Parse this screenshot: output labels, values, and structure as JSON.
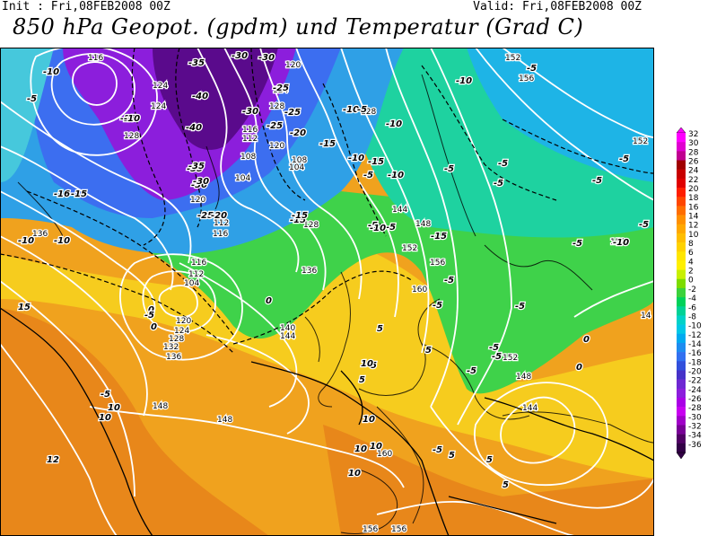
{
  "header": {
    "init": "Init : Fri,08FEB2008 00Z",
    "valid": "Valid: Fri,08FEB2008 00Z",
    "title": "850 hPa Geopot. (gpdm) und Temperatur (Grad C)"
  },
  "legend": {
    "values": [
      32,
      30,
      28,
      26,
      24,
      22,
      20,
      18,
      16,
      14,
      12,
      10,
      8,
      6,
      4,
      2,
      0,
      -2,
      -4,
      -6,
      -8,
      -10,
      -12,
      -14,
      -16,
      -18,
      -20,
      -22,
      -24,
      -26,
      -28,
      -30,
      -32,
      -34,
      -36
    ],
    "colors": [
      "#ff00ff",
      "#e000d0",
      "#c00090",
      "#a00000",
      "#c80000",
      "#e00000",
      "#ff1e00",
      "#ff4600",
      "#ff6e00",
      "#ff9000",
      "#ffa800",
      "#ffbe00",
      "#ffd200",
      "#ffe600",
      "#fff000",
      "#c8f000",
      "#7ddc00",
      "#3cd23c",
      "#00d25a",
      "#00d296",
      "#00d2c8",
      "#00c8e6",
      "#00aaf0",
      "#1e8cf0",
      "#3270f0",
      "#3250dc",
      "#4632c8",
      "#6e28d2",
      "#8c1edc",
      "#aa00e6",
      "#c800f0",
      "#a000c8",
      "#780096",
      "#500064",
      "#320046"
    ]
  },
  "map": {
    "geopotential_labels": [
      {
        "text": "116",
        "kind": "geo"
      },
      {
        "text": "124",
        "kind": "geo"
      },
      {
        "text": "124",
        "kind": "geo"
      },
      {
        "text": "128",
        "kind": "geo"
      },
      {
        "text": "120",
        "kind": "geo"
      },
      {
        "text": "124",
        "kind": "geo"
      },
      {
        "text": "128",
        "kind": "geo"
      },
      {
        "text": "116",
        "kind": "geo"
      },
      {
        "text": "112",
        "kind": "geo"
      },
      {
        "text": "120",
        "kind": "geo"
      },
      {
        "text": "108",
        "kind": "geo"
      },
      {
        "text": "104",
        "kind": "geo"
      },
      {
        "text": "108",
        "kind": "geo"
      },
      {
        "text": "104",
        "kind": "geo"
      },
      {
        "text": "120",
        "kind": "geo"
      },
      {
        "text": "112",
        "kind": "geo"
      },
      {
        "text": "116",
        "kind": "geo"
      },
      {
        "text": "128",
        "kind": "geo"
      },
      {
        "text": "128",
        "kind": "geo"
      },
      {
        "text": "152",
        "kind": "geo"
      },
      {
        "text": "156",
        "kind": "geo"
      },
      {
        "text": "152",
        "kind": "geo"
      },
      {
        "text": "144",
        "kind": "geo"
      },
      {
        "text": "148",
        "kind": "geo"
      },
      {
        "text": "152",
        "kind": "geo"
      },
      {
        "text": "156",
        "kind": "geo"
      },
      {
        "text": "160",
        "kind": "geo"
      },
      {
        "text": "136",
        "kind": "geo"
      },
      {
        "text": "136",
        "kind": "geo"
      },
      {
        "text": "140",
        "kind": "geo"
      },
      {
        "text": "144",
        "kind": "geo"
      },
      {
        "text": "116",
        "kind": "geo"
      },
      {
        "text": "112",
        "kind": "geo"
      },
      {
        "text": "104",
        "kind": "geo"
      },
      {
        "text": "120",
        "kind": "geo"
      },
      {
        "text": "124",
        "kind": "geo"
      },
      {
        "text": "128",
        "kind": "geo"
      },
      {
        "text": "132",
        "kind": "geo"
      },
      {
        "text": "136",
        "kind": "geo"
      },
      {
        "text": "148",
        "kind": "geo"
      },
      {
        "text": "148",
        "kind": "geo"
      },
      {
        "text": "152",
        "kind": "geo"
      },
      {
        "text": "148",
        "kind": "geo"
      },
      {
        "text": "144",
        "kind": "geo"
      },
      {
        "text": "160",
        "kind": "geo"
      },
      {
        "text": "152",
        "kind": "geo"
      },
      {
        "text": "156",
        "kind": "geo"
      },
      {
        "text": "156",
        "kind": "geo"
      },
      {
        "text": "14",
        "kind": "geo"
      }
    ],
    "temperature_labels": [
      {
        "text": "-35",
        "kind": "temp"
      },
      {
        "text": "-30",
        "kind": "temp"
      },
      {
        "text": "-30",
        "kind": "temp"
      },
      {
        "text": "-40",
        "kind": "temp"
      },
      {
        "text": "-40",
        "kind": "temp"
      },
      {
        "text": "-35",
        "kind": "temp"
      },
      {
        "text": "-30",
        "kind": "temp"
      },
      {
        "text": "-25",
        "kind": "temp"
      },
      {
        "text": "-25",
        "kind": "temp"
      },
      {
        "text": "-25",
        "kind": "temp"
      },
      {
        "text": "-30",
        "kind": "temp"
      },
      {
        "text": "-25",
        "kind": "temp"
      },
      {
        "text": "-20",
        "kind": "temp"
      },
      {
        "text": "-15",
        "kind": "temp"
      },
      {
        "text": "-10",
        "kind": "temp"
      },
      {
        "text": "-35",
        "kind": "temp"
      },
      {
        "text": "-30",
        "kind": "temp"
      },
      {
        "text": "-25",
        "kind": "temp"
      },
      {
        "text": "-20",
        "kind": "temp"
      },
      {
        "text": "-15",
        "kind": "temp"
      },
      {
        "text": "-10",
        "kind": "temp"
      },
      {
        "text": "-5",
        "kind": "temp"
      },
      {
        "text": "-10",
        "kind": "temp"
      },
      {
        "text": "-5",
        "kind": "temp"
      },
      {
        "text": "-10",
        "kind": "temp"
      },
      {
        "text": "-15",
        "kind": "temp"
      },
      {
        "text": "-10",
        "kind": "temp"
      },
      {
        "text": "-15",
        "kind": "temp"
      },
      {
        "text": "-10",
        "kind": "temp"
      },
      {
        "text": "-5",
        "kind": "temp"
      },
      {
        "text": "-5",
        "kind": "temp"
      },
      {
        "text": "-5",
        "kind": "temp"
      },
      {
        "text": "-5",
        "kind": "temp"
      },
      {
        "text": "-5",
        "kind": "temp"
      },
      {
        "text": "-5",
        "kind": "temp"
      },
      {
        "text": "-10",
        "kind": "temp"
      },
      {
        "text": "-5",
        "kind": "temp"
      },
      {
        "text": "-5",
        "kind": "temp"
      },
      {
        "text": "-5",
        "kind": "temp"
      },
      {
        "text": "-16",
        "kind": "temp"
      },
      {
        "text": "-15",
        "kind": "temp"
      },
      {
        "text": "-10",
        "kind": "temp"
      },
      {
        "text": "-10",
        "kind": "temp"
      },
      {
        "text": "-5",
        "kind": "temp"
      },
      {
        "text": "-15",
        "kind": "temp"
      },
      {
        "text": "-10",
        "kind": "temp"
      },
      {
        "text": "-5",
        "kind": "temp"
      },
      {
        "text": "-5",
        "kind": "temp"
      },
      {
        "text": "-5",
        "kind": "temp"
      },
      {
        "text": "-5",
        "kind": "temp"
      },
      {
        "text": "-5",
        "kind": "temp"
      },
      {
        "text": "-5",
        "kind": "temp"
      },
      {
        "text": "-5",
        "kind": "temp"
      },
      {
        "text": "0",
        "kind": "temp"
      },
      {
        "text": "0",
        "kind": "temp"
      },
      {
        "text": "0",
        "kind": "temp"
      },
      {
        "text": "0",
        "kind": "temp"
      },
      {
        "text": "0",
        "kind": "temp"
      },
      {
        "text": "5",
        "kind": "temp"
      },
      {
        "text": "5",
        "kind": "temp"
      },
      {
        "text": "5",
        "kind": "temp"
      },
      {
        "text": "5",
        "kind": "temp"
      },
      {
        "text": "5",
        "kind": "temp"
      },
      {
        "text": "5",
        "kind": "temp"
      },
      {
        "text": "10",
        "kind": "temp"
      },
      {
        "text": "10",
        "kind": "temp"
      },
      {
        "text": "10",
        "kind": "temp"
      },
      {
        "text": "10",
        "kind": "temp"
      },
      {
        "text": "10",
        "kind": "temp"
      },
      {
        "text": "10",
        "kind": "temp"
      },
      {
        "text": "10",
        "kind": "temp"
      },
      {
        "text": "12",
        "kind": "temp"
      },
      {
        "text": "15",
        "kind": "temp"
      },
      {
        "text": "-5",
        "kind": "temp"
      },
      {
        "text": "-5",
        "kind": "temp"
      },
      {
        "text": "-10",
        "kind": "temp"
      },
      {
        "text": "5",
        "kind": "temp"
      },
      {
        "text": "-5",
        "kind": "temp"
      }
    ]
  }
}
